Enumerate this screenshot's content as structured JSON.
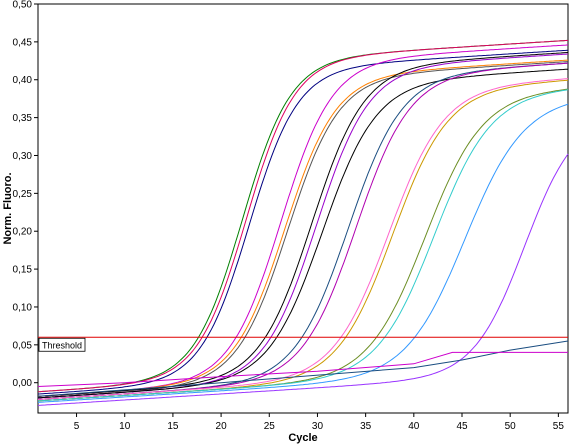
{
  "chart_data": {
    "type": "line",
    "xlabel": "Cycle",
    "ylabel": "Norm. Fluoro.",
    "xlim": [
      1,
      56
    ],
    "ylim": [
      -0.04,
      0.5
    ],
    "x_ticks": [
      5,
      10,
      15,
      20,
      25,
      30,
      35,
      40,
      45,
      50,
      55
    ],
    "x_tick_labels": [
      "5",
      "10",
      "15",
      "20",
      "25",
      "30",
      "35",
      "40",
      "45",
      "50",
      "55"
    ],
    "y_ticks": [
      0.0,
      0.05,
      0.1,
      0.15,
      0.2,
      0.25,
      0.3,
      0.35,
      0.4,
      0.45,
      0.5
    ],
    "y_tick_labels": [
      "0,00",
      "0,05",
      "0,10",
      "0,15",
      "0,20",
      "0,25",
      "0,30",
      "0,35",
      "0,40",
      "0,45",
      "0,50"
    ],
    "grid": false,
    "legend": "none",
    "threshold": {
      "label": "Threshold",
      "value": 0.06,
      "color": "#e00000"
    },
    "series": [
      {
        "color": "#008000",
        "base": -0.012,
        "slope": 0.0008,
        "plateau": 0.42,
        "midpoint": 22.2,
        "steepness": 0.4
      },
      {
        "color": "#e00060",
        "base": -0.012,
        "slope": 0.0008,
        "plateau": 0.42,
        "midpoint": 22.6,
        "steepness": 0.4
      },
      {
        "color": "#000080",
        "base": -0.015,
        "slope": 0.0008,
        "plateau": 0.41,
        "midpoint": 22.9,
        "steepness": 0.4
      },
      {
        "color": "#cc00cc",
        "base": -0.018,
        "slope": 0.0008,
        "plateau": 0.42,
        "midpoint": 26.2,
        "steepness": 0.38
      },
      {
        "color": "#ff8000",
        "base": -0.018,
        "slope": 0.0008,
        "plateau": 0.4,
        "midpoint": 26.6,
        "steepness": 0.38
      },
      {
        "color": "#555555",
        "base": -0.02,
        "slope": 0.0008,
        "plateau": 0.4,
        "midpoint": 26.9,
        "steepness": 0.38
      },
      {
        "color": "#000000",
        "base": -0.018,
        "slope": 0.0008,
        "plateau": 0.41,
        "midpoint": 29.4,
        "steepness": 0.37
      },
      {
        "color": "#9900cc",
        "base": -0.02,
        "slope": 0.0008,
        "plateau": 0.41,
        "midpoint": 29.9,
        "steepness": 0.37
      },
      {
        "color": "#000000",
        "base": -0.02,
        "slope": 0.0008,
        "plateau": 0.39,
        "midpoint": 30.5,
        "steepness": 0.36
      },
      {
        "color": "#1a4d80",
        "base": -0.022,
        "slope": 0.0008,
        "plateau": 0.4,
        "midpoint": 33.2,
        "steepness": 0.36
      },
      {
        "color": "#b000b0",
        "base": -0.022,
        "slope": 0.0008,
        "plateau": 0.4,
        "midpoint": 34.0,
        "steepness": 0.36
      },
      {
        "color": "#ff66cc",
        "base": -0.022,
        "slope": 0.0008,
        "plateau": 0.38,
        "midpoint": 37.4,
        "steepness": 0.35
      },
      {
        "color": "#cc9900",
        "base": -0.024,
        "slope": 0.0008,
        "plateau": 0.38,
        "midpoint": 37.8,
        "steepness": 0.35
      },
      {
        "color": "#6b8e23",
        "base": -0.024,
        "slope": 0.0008,
        "plateau": 0.37,
        "midpoint": 41.2,
        "steepness": 0.34
      },
      {
        "color": "#33cccc",
        "base": -0.024,
        "slope": 0.0008,
        "plateau": 0.37,
        "midpoint": 42.1,
        "steepness": 0.34
      },
      {
        "color": "#3399ff",
        "base": -0.026,
        "slope": 0.0008,
        "plateau": 0.36,
        "midpoint": 45.3,
        "steepness": 0.33
      },
      {
        "color": "#9933ff",
        "base": -0.03,
        "slope": 0.0008,
        "plateau": 0.34,
        "midpoint": 51.5,
        "steepness": 0.38
      }
    ],
    "extra_lines": [
      {
        "color": "#1a4d80",
        "x": [
          1,
          20,
          40,
          45,
          50,
          56
        ],
        "y": [
          -0.018,
          0.0,
          0.02,
          0.03,
          0.043,
          0.055
        ]
      },
      {
        "color": "#cc00cc",
        "x": [
          1,
          10,
          20,
          30,
          40,
          44,
          56
        ],
        "y": [
          -0.005,
          0.0,
          0.008,
          0.015,
          0.025,
          0.04,
          0.04
        ]
      }
    ]
  }
}
